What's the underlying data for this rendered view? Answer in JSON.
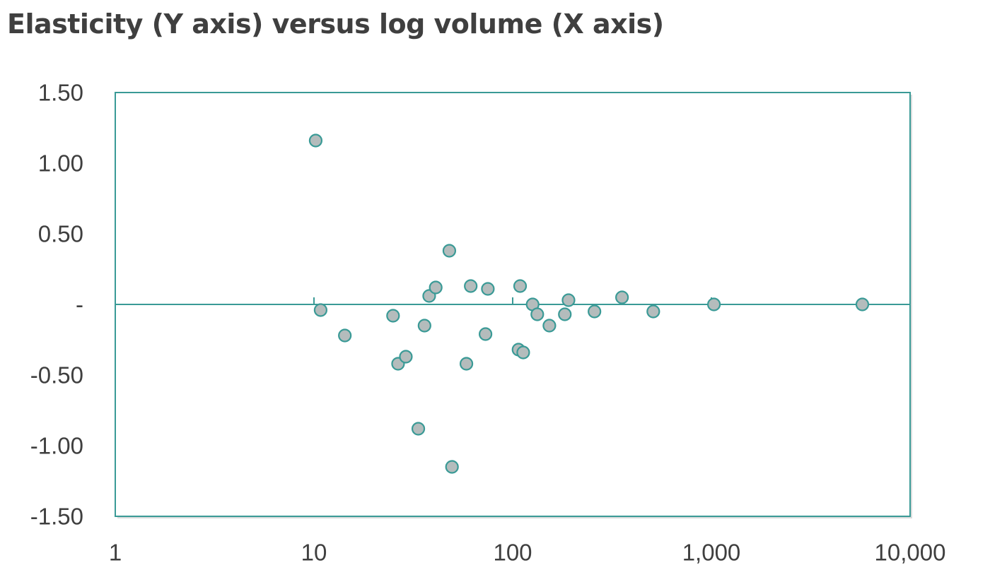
{
  "colors": {
    "axis": "#3a9a96",
    "marker_fill": "#b4bcbc",
    "marker_stroke": "#3a9a96",
    "text": "#3f3f3f"
  },
  "chart_data": {
    "type": "scatter",
    "title": "Elasticity (Y axis) versus log volume (X axis)",
    "xlabel": "",
    "ylabel": "",
    "x_scale": "log",
    "xlim": [
      1,
      10000
    ],
    "ylim": [
      -1.5,
      1.5
    ],
    "x_ticks": [
      {
        "value": 1,
        "label": "1"
      },
      {
        "value": 10,
        "label": "10"
      },
      {
        "value": 100,
        "label": "100"
      },
      {
        "value": 1000,
        "label": "1,000"
      },
      {
        "value": 10000,
        "label": "10,000"
      }
    ],
    "y_ticks": [
      {
        "value": 1.5,
        "label": "1.50"
      },
      {
        "value": 1.0,
        "label": "1.00"
      },
      {
        "value": 0.5,
        "label": "0.50"
      },
      {
        "value": 0,
        "label": "-"
      },
      {
        "value": -0.5,
        "label": "-0.50"
      },
      {
        "value": -1.0,
        "label": "-1.00"
      },
      {
        "value": -1.5,
        "label": "-1.50"
      }
    ],
    "grid": false,
    "legend": "none",
    "series": [
      {
        "name": "Elasticity",
        "points": [
          {
            "x": 10.2,
            "y": 1.16
          },
          {
            "x": 10.8,
            "y": -0.04
          },
          {
            "x": 14.3,
            "y": -0.22
          },
          {
            "x": 25.0,
            "y": -0.08
          },
          {
            "x": 26.5,
            "y": -0.42
          },
          {
            "x": 29.0,
            "y": -0.37
          },
          {
            "x": 33.5,
            "y": -0.88
          },
          {
            "x": 36.0,
            "y": -0.15
          },
          {
            "x": 38.0,
            "y": 0.06
          },
          {
            "x": 41.0,
            "y": 0.12
          },
          {
            "x": 48.0,
            "y": 0.38
          },
          {
            "x": 49.5,
            "y": -1.15
          },
          {
            "x": 58.5,
            "y": -0.42
          },
          {
            "x": 61.5,
            "y": 0.13
          },
          {
            "x": 73.0,
            "y": -0.21
          },
          {
            "x": 75.0,
            "y": 0.11
          },
          {
            "x": 107.0,
            "y": -0.32
          },
          {
            "x": 109.0,
            "y": 0.13
          },
          {
            "x": 113.0,
            "y": -0.34
          },
          {
            "x": 126.0,
            "y": 0.0
          },
          {
            "x": 133.0,
            "y": -0.07
          },
          {
            "x": 153.0,
            "y": -0.15
          },
          {
            "x": 183.0,
            "y": -0.07
          },
          {
            "x": 191.0,
            "y": 0.03
          },
          {
            "x": 258.0,
            "y": -0.05
          },
          {
            "x": 355.0,
            "y": 0.05
          },
          {
            "x": 510.0,
            "y": -0.05
          },
          {
            "x": 1030.0,
            "y": 0.0
          },
          {
            "x": 5750.0,
            "y": 0.0
          }
        ]
      }
    ]
  }
}
